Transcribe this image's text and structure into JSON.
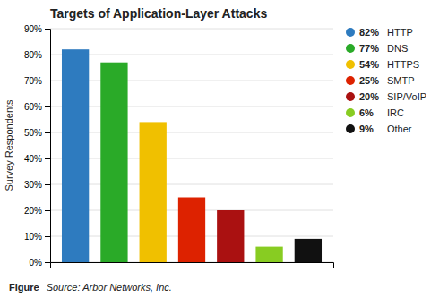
{
  "chart_data": {
    "type": "bar",
    "title": "Targets of Application-Layer Attacks",
    "categories": [
      "HTTP",
      "DNS",
      "HTTPS",
      "SMTP",
      "SIP/VoIP",
      "IRC",
      "Other"
    ],
    "values": [
      82,
      77,
      54,
      25,
      20,
      6,
      9
    ],
    "value_labels": [
      "82%",
      "77%",
      "54%",
      "25%",
      "20%",
      "6%",
      "9%"
    ],
    "colors": [
      "#2E7BBF",
      "#2AAA28",
      "#F0C000",
      "#DD2200",
      "#AA1111",
      "#88CC22",
      "#111111"
    ],
    "ylabel": "Survey Respondents",
    "ylim": [
      0,
      90
    ],
    "yticks": [
      {
        "value": 0,
        "label": "0%"
      },
      {
        "value": 10,
        "label": "10%"
      },
      {
        "value": 20,
        "label": "20%"
      },
      {
        "value": 30,
        "label": "30%"
      },
      {
        "value": 40,
        "label": "40%"
      },
      {
        "value": 50,
        "label": "50%"
      },
      {
        "value": 60,
        "label": "60%"
      },
      {
        "value": 70,
        "label": "70%"
      },
      {
        "value": 80,
        "label": "80%"
      },
      {
        "value": 90,
        "label": "90%"
      }
    ],
    "grid": true,
    "legend": "right",
    "tick_labels": "y",
    "annotations": [
      "Figure",
      "Source: Arbor Networks, Inc."
    ]
  }
}
